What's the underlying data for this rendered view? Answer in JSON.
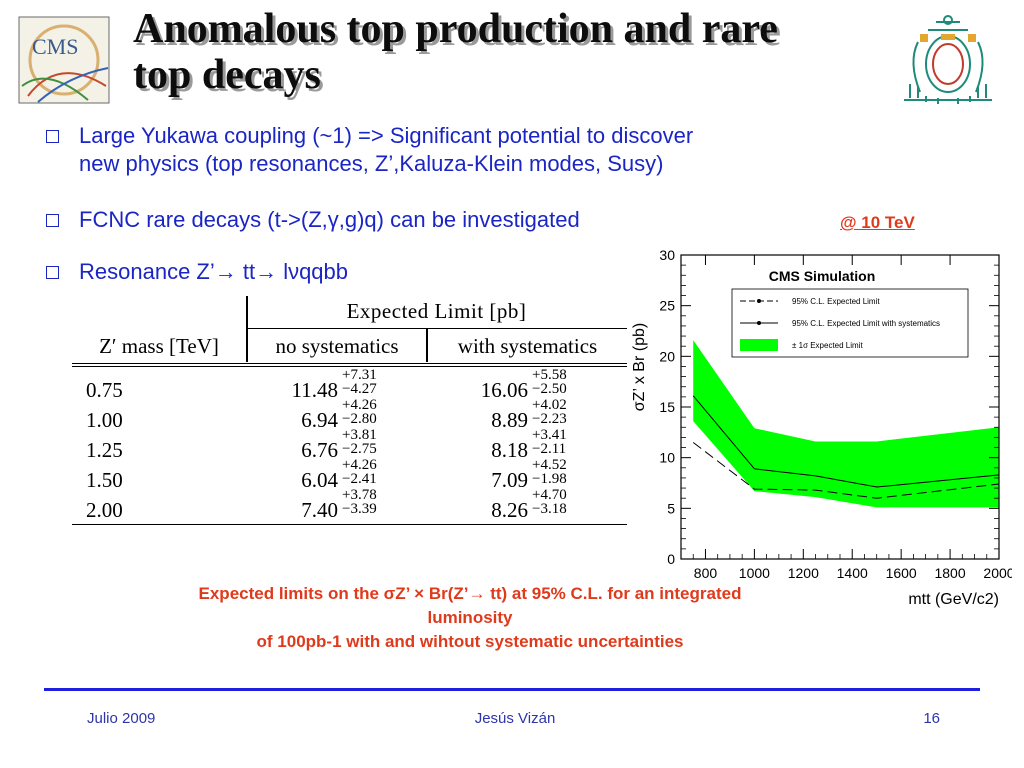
{
  "title": {
    "line1": "Anomalous top production and rare",
    "line2": "top decays"
  },
  "logos": {
    "left": "CMS",
    "right_icon": "university-crest"
  },
  "bullets": [
    {
      "line1": "Large Yukawa coupling (~1) => Significant potential to discover",
      "line2": "new physics (top resonances, Z’,Kaluza-Klein modes, Susy)"
    },
    {
      "line1": "FCNC rare decays (t->(Z,γ,g)q) can be investigated"
    },
    {
      "line1": "Resonance Z’→ tt→ lνqqbb"
    }
  ],
  "energy_label": "@ 10 TeV",
  "table": {
    "header_top": "Expected Limit [pb]",
    "col_mass": "Z′ mass [TeV]",
    "col_nosys": "no systematics",
    "col_sys": "with systematics",
    "rows": [
      {
        "mass": "0.75",
        "nosys": "11.48",
        "nosys_up": "+7.31",
        "nosys_dn": "−4.27",
        "sys": "16.06",
        "sys_up": "+5.58",
        "sys_dn": "−2.50"
      },
      {
        "mass": "1.00",
        "nosys": "6.94",
        "nosys_up": "+4.26",
        "nosys_dn": "−2.80",
        "sys": "8.89",
        "sys_up": "+4.02",
        "sys_dn": "−2.23"
      },
      {
        "mass": "1.25",
        "nosys": "6.76",
        "nosys_up": "+3.81",
        "nosys_dn": "−2.75",
        "sys": "8.18",
        "sys_up": "+3.41",
        "sys_dn": "−2.11"
      },
      {
        "mass": "1.50",
        "nosys": "6.04",
        "nosys_up": "+4.26",
        "nosys_dn": "−2.41",
        "sys": "7.09",
        "sys_up": "+4.52",
        "sys_dn": "−1.98"
      },
      {
        "mass": "2.00",
        "nosys": "7.40",
        "nosys_up": "+3.78",
        "nosys_dn": "−3.39",
        "sys": "8.26",
        "sys_up": "+4.70",
        "sys_dn": "−3.18"
      }
    ]
  },
  "chart_data": {
    "type": "line",
    "title": "CMS Simulation",
    "ylabel": "σZ’ x Br (pb)",
    "xlabel": "mtt (GeV/c2)",
    "xlim": [
      700,
      2000
    ],
    "ylim": [
      0,
      30
    ],
    "xticks": [
      800,
      1000,
      1200,
      1400,
      1600,
      1800,
      2000
    ],
    "yticks": [
      0,
      5,
      10,
      15,
      20,
      25,
      30
    ],
    "legend_position": "top-right",
    "series": [
      {
        "name": "95% C.L. Expected Limit",
        "style": "dashed",
        "x": [
          750,
          1000,
          1250,
          1500,
          2000
        ],
        "y": [
          11.5,
          6.9,
          6.8,
          6.0,
          7.4
        ]
      },
      {
        "name": "95% C.L. Expected Limit with systematics",
        "style": "solid-marker",
        "x": [
          750,
          1000,
          1250,
          1500,
          2000
        ],
        "y": [
          16.1,
          8.9,
          8.2,
          7.1,
          8.3
        ]
      },
      {
        "name": "± 1σ Expected Limit",
        "style": "band",
        "x": [
          750,
          1000,
          1250,
          1500,
          2000
        ],
        "upper": [
          21.6,
          12.9,
          11.6,
          11.6,
          13.0
        ],
        "lower": [
          13.6,
          6.7,
          6.1,
          5.1,
          5.1
        ]
      }
    ],
    "colors": {
      "band": "#00ff00",
      "lines": "#000000"
    }
  },
  "caption": {
    "line1": "Expected limits on the σZ’ × Br(Z’→ tt) at 95% C.L. for an integrated",
    "line2": "luminosity",
    "line3": "of 100pb-1 with and wihtout systematic uncertainties"
  },
  "footer": {
    "date": "Julio 2009",
    "author": "Jesús Vizán",
    "page": "16"
  }
}
